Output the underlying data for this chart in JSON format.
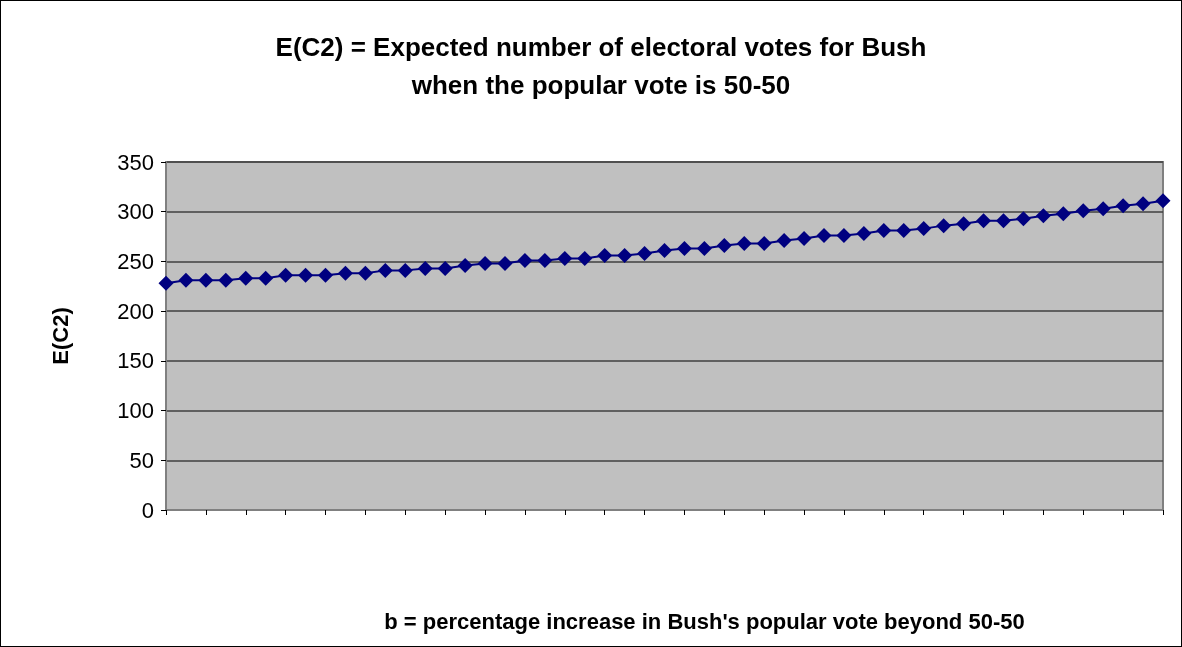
{
  "chart_data": {
    "type": "line",
    "title": "E(C2) = Expected number of electoral votes for Bush\nwhen the popular vote is 50-50",
    "xlabel": "b = percentage increase in Bush's popular vote beyond 50-50",
    "ylabel": "E(C2)",
    "categories": [
      null,
      null,
      null,
      null,
      null,
      null,
      null,
      null,
      null,
      null,
      null,
      null,
      null,
      null,
      null,
      null,
      null,
      null,
      null,
      null,
      null,
      null,
      null,
      null,
      null,
      null,
      null,
      null,
      null,
      null,
      null,
      null,
      null,
      null,
      null,
      null,
      null,
      null,
      null,
      null,
      null,
      null,
      null,
      null,
      null,
      null,
      null,
      null,
      null,
      null,
      null
    ],
    "series": [
      {
        "color": "#000080",
        "values": [
          228,
          231,
          231,
          231,
          233,
          233,
          236,
          236,
          236,
          238,
          238,
          241,
          241,
          243,
          243,
          246,
          248,
          248,
          251,
          251,
          253,
          253,
          256,
          256,
          258,
          261,
          263,
          263,
          266,
          268,
          268,
          271,
          273,
          276,
          276,
          278,
          281,
          281,
          283,
          286,
          288,
          291,
          291,
          293,
          296,
          298,
          301,
          303,
          306,
          308,
          311
        ]
      }
    ],
    "ylim": [
      0,
      350
    ],
    "yticks": [
      0,
      50,
      100,
      150,
      200,
      250,
      300,
      350
    ],
    "grid": "y",
    "marker": "diamond",
    "line_style": "solid"
  }
}
